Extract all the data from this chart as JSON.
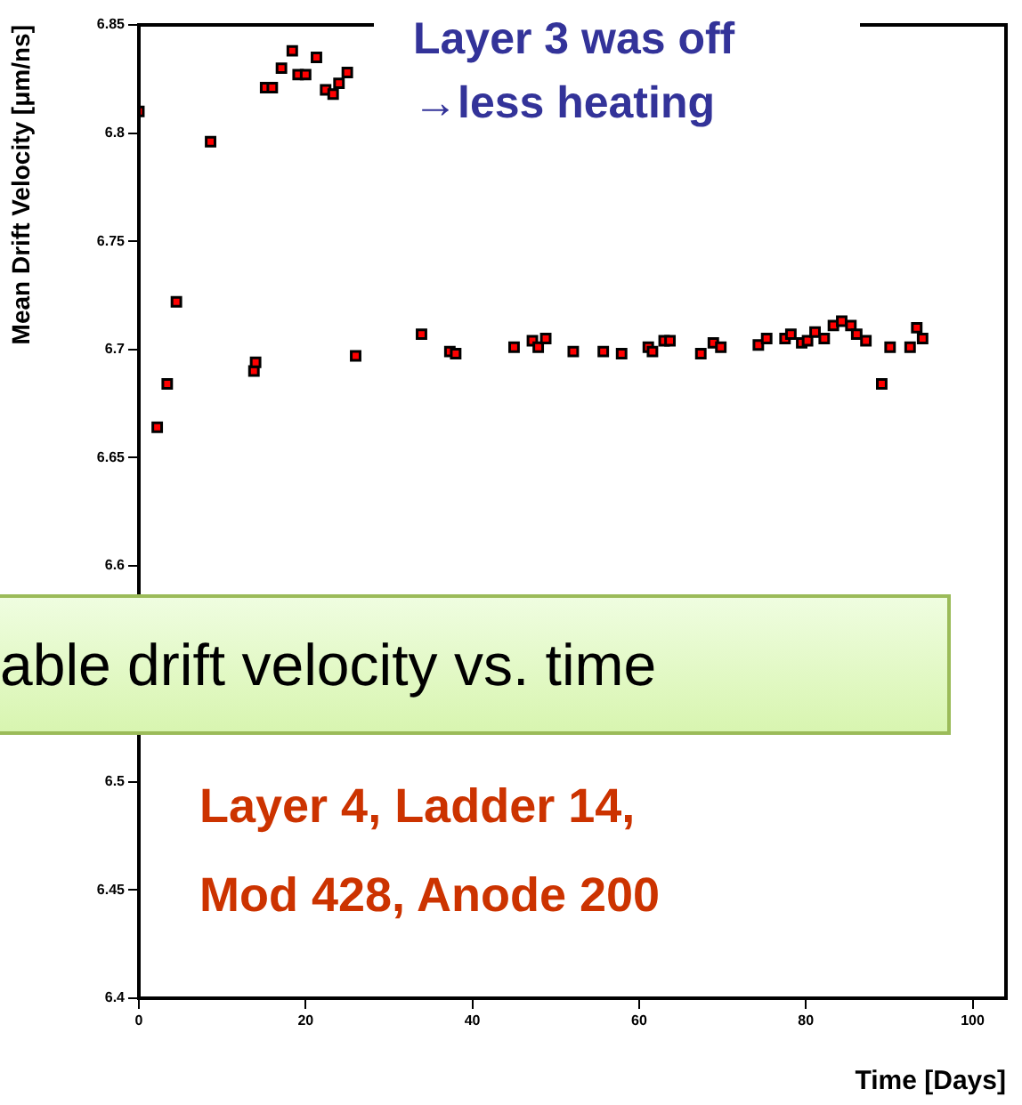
{
  "chart_data": {
    "type": "scatter",
    "xlabel": "Time [Days]",
    "ylabel": "Mean Drift Velocity [μm/ns]",
    "annotations": [
      "Layer 3 was off\n→less heating",
      "able drift velocity vs. time",
      "Layer 4, Ladder 14,\nMod 428, Anode 200"
    ],
    "xlim": [
      0,
      104
    ],
    "xticks": [
      0,
      20,
      40,
      60,
      80,
      100
    ],
    "ylim": [
      6.4,
      6.85
    ],
    "yticks": [
      6.4,
      6.45,
      6.5,
      {
        "value": 6.55,
        "label": null
      },
      6.6,
      6.65,
      6.7,
      6.75,
      6.8,
      6.85
    ],
    "grid": false,
    "legend": false,
    "marker": "square",
    "series": [
      {
        "color": "#ff0000",
        "x": [
          0,
          2.2,
          3.4,
          4.5,
          8.6,
          13.8,
          14.0,
          15.2,
          16.0,
          17.1,
          18.4,
          19.1,
          20.0,
          21.3,
          22.4,
          23.3,
          24.0,
          25.0,
          26.0,
          33.9,
          37.3,
          38.0,
          45.0,
          47.2,
          47.9,
          48.8,
          52.1,
          55.7,
          57.9,
          61.1,
          61.6,
          63.0,
          63.7,
          67.4,
          68.9,
          69.8,
          74.3,
          75.3,
          77.5,
          78.2,
          79.5,
          80.2,
          81.1,
          82.2,
          83.3,
          84.3,
          85.4,
          86.1,
          87.2,
          89.1,
          90.1,
          92.5,
          93.3,
          94.0
        ],
        "values": [
          6.81,
          6.664,
          6.684,
          6.722,
          6.796,
          6.69,
          6.694,
          6.821,
          6.821,
          6.83,
          6.838,
          6.827,
          6.827,
          6.835,
          6.82,
          6.818,
          6.823,
          6.828,
          6.697,
          6.707,
          6.699,
          6.698,
          6.701,
          6.704,
          6.701,
          6.705,
          6.699,
          6.699,
          6.698,
          6.701,
          6.699,
          6.704,
          6.704,
          6.698,
          6.703,
          6.701,
          6.702,
          6.705,
          6.705,
          6.707,
          6.703,
          6.704,
          6.708,
          6.705,
          6.711,
          6.713,
          6.711,
          6.707,
          6.704,
          6.684,
          6.701,
          6.701,
          6.71,
          6.705
        ]
      }
    ]
  }
}
